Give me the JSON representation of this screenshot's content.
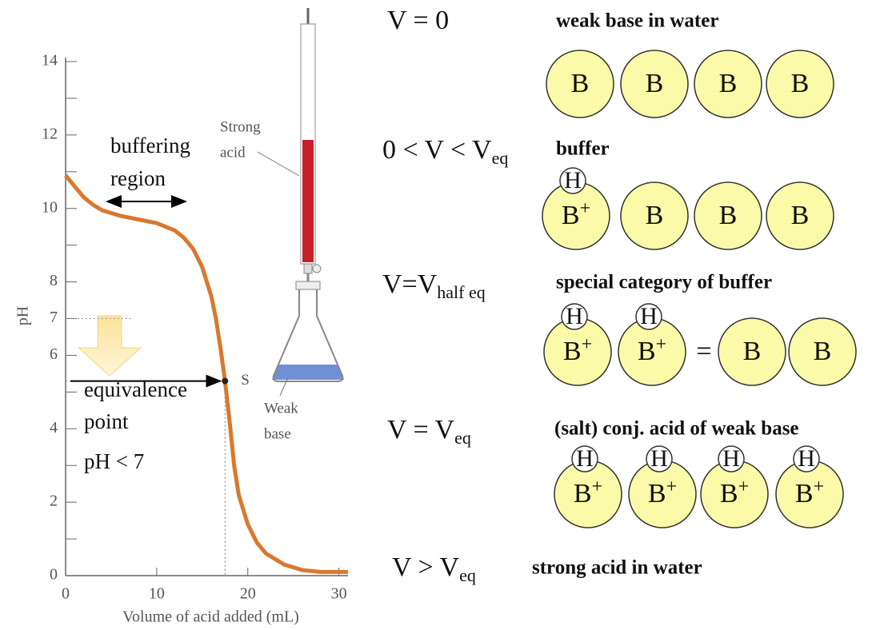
{
  "chart_data": {
    "type": "line",
    "x": [
      0,
      1,
      2,
      3,
      4,
      6,
      8,
      10,
      12,
      13,
      14,
      15,
      16,
      16.5,
      17,
      17.5,
      18,
      18.5,
      19,
      20,
      21,
      22,
      24,
      26,
      28,
      31
    ],
    "values": [
      10.9,
      10.6,
      10.3,
      10.1,
      9.95,
      9.8,
      9.7,
      9.6,
      9.4,
      9.2,
      8.9,
      8.4,
      7.6,
      7.0,
      6.2,
      5.3,
      4.2,
      3.0,
      2.2,
      1.4,
      0.9,
      0.6,
      0.3,
      0.15,
      0.1,
      0.1
    ],
    "color": "#d9782e",
    "xlim": [
      0,
      31
    ],
    "ylim": [
      0,
      14
    ],
    "xticks": [
      0,
      10,
      20,
      30
    ],
    "yticks": [
      0,
      2,
      4,
      6,
      7,
      8,
      10,
      12,
      14
    ],
    "minor_yticks": [
      1,
      3,
      5,
      9,
      11,
      13
    ],
    "x_label": "Volume of acid added (mL)",
    "y_label": "pH",
    "equivalence": {
      "x": 17.5,
      "y": 5.3,
      "label": "S"
    },
    "buffer_label": [
      "buffering",
      "region"
    ],
    "equivalence_label": [
      "equivalence",
      "point",
      "pH < 7"
    ],
    "acid_label": [
      "Strong",
      "acid"
    ],
    "base_label": [
      "Weak",
      "base"
    ]
  },
  "stages": [
    {
      "condition": "V = 0",
      "description": "weak base in water",
      "particles": [
        {
          "label": "B"
        },
        {
          "label": "B"
        },
        {
          "label": "B"
        },
        {
          "label": "B"
        }
      ]
    },
    {
      "condition": "0 < V < V",
      "subscript": "eq",
      "description": "buffer",
      "particles": [
        {
          "label": "B",
          "charge": "+",
          "proton": "H"
        },
        {
          "label": "B"
        },
        {
          "label": "B"
        },
        {
          "label": "B"
        }
      ]
    },
    {
      "condition": "V=V",
      "subscript": "half eq",
      "description": "special category of buffer",
      "particles": [
        {
          "label": "B",
          "charge": "+",
          "proton": "H"
        },
        {
          "label": "B",
          "charge": "+",
          "proton": "H"
        },
        {
          "symbol": "="
        },
        {
          "label": "B"
        },
        {
          "label": "B"
        }
      ]
    },
    {
      "condition": "V = V",
      "subscript": "eq",
      "description": "(salt) conj. acid of weak base",
      "particles": [
        {
          "label": "B",
          "charge": "+",
          "proton": "H"
        },
        {
          "label": "B",
          "charge": "+",
          "proton": "H"
        },
        {
          "label": "B",
          "charge": "+",
          "proton": "H"
        },
        {
          "label": "B",
          "charge": "+",
          "proton": "H"
        }
      ]
    },
    {
      "condition": "V > V",
      "subscript": "eq",
      "description": "strong acid in water",
      "particles": []
    }
  ]
}
